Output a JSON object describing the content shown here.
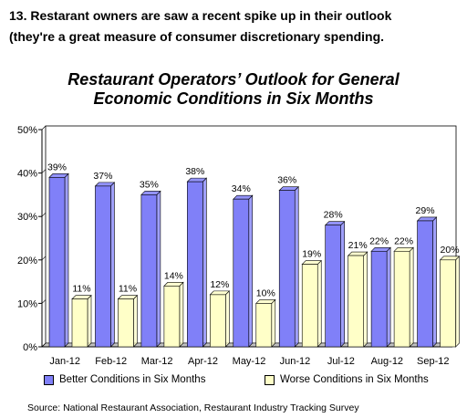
{
  "header": {
    "line1": "13. Restarant owners are saw a recent spike up in their outlook",
    "line2": "(they're a great measure of consumer discretionary spending."
  },
  "chart_data": {
    "type": "bar",
    "title_line1": "Restaurant Operators’ Outlook for General",
    "title_line2": "Economic Conditions in Six Months",
    "categories": [
      "Jan-12",
      "Feb-12",
      "Mar-12",
      "Apr-12",
      "May-12",
      "Jun-12",
      "Jul-12",
      "Aug-12",
      "Sep-12"
    ],
    "series": [
      {
        "name": "Better Conditions in Six Months",
        "color": "#8080f8",
        "values": [
          39,
          37,
          35,
          38,
          34,
          36,
          28,
          22,
          29
        ],
        "labels": [
          "39%",
          "37%",
          "35%",
          "38%",
          "34%",
          "36%",
          "28%",
          "22%",
          "29%"
        ]
      },
      {
        "name": "Worse Conditions in Six Months",
        "color": "#ffffc8",
        "values": [
          11,
          11,
          14,
          12,
          10,
          19,
          21,
          22,
          20
        ],
        "labels": [
          "11%",
          "11%",
          "14%",
          "12%",
          "10%",
          "19%",
          "21%",
          "22%",
          "20%"
        ]
      }
    ],
    "y_ticks": [
      "0%",
      "10%",
      "20%",
      "30%",
      "40%",
      "50%"
    ],
    "ylim": [
      0,
      50
    ],
    "grid": false,
    "legend_position": "bottom",
    "source": "Source: National Restaurant Association, Restaurant Industry Tracking Survey"
  }
}
